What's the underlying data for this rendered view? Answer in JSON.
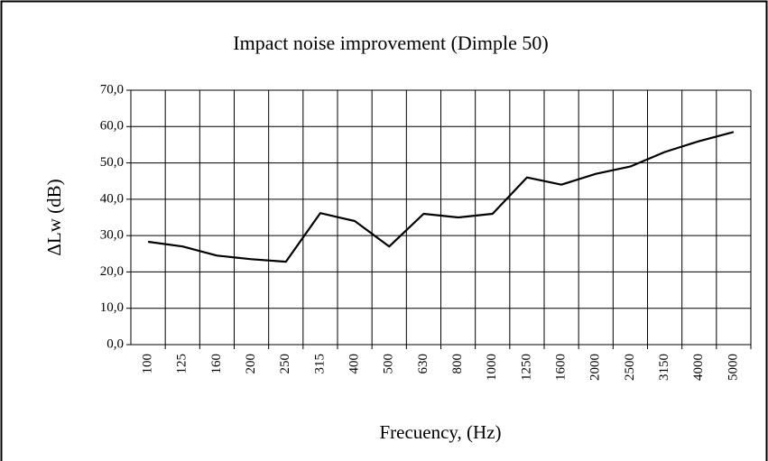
{
  "chart_data": {
    "type": "line",
    "title": "Impact noise improvement (Dimple 50)",
    "x_label": "Frecuency, (Hz)",
    "y_label": "ΔLw (dB)",
    "categories": [
      "100",
      "125",
      "160",
      "200",
      "250",
      "315",
      "400",
      "500",
      "630",
      "800",
      "1000",
      "1250",
      "1600",
      "2000",
      "2500",
      "3150",
      "4000",
      "5000"
    ],
    "values": [
      28.3,
      27,
      24.5,
      23.5,
      22.8,
      36.2,
      34,
      27,
      36,
      35,
      36,
      46,
      44,
      47,
      49,
      53,
      56,
      58.5
    ],
    "color": "#000000",
    "ylim": [
      0,
      70
    ],
    "yticks": [
      {
        "value": 0,
        "label": "0,0"
      },
      {
        "value": 10,
        "label": "10,0"
      },
      {
        "value": 20,
        "label": "20,0"
      },
      {
        "value": 30,
        "label": "30,0"
      },
      {
        "value": 40,
        "label": "40,0"
      },
      {
        "value": 50,
        "label": "50,0"
      },
      {
        "value": 60,
        "label": "60,0"
      },
      {
        "value": 70,
        "label": "70,0"
      }
    ],
    "grid": true
  }
}
